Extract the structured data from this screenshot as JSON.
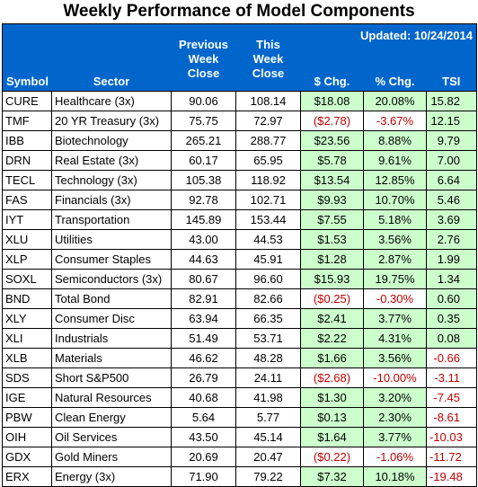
{
  "title": "Weekly Performance of Model Components",
  "updated": "Updated: 10/24/2014",
  "columns": {
    "symbol": "Symbol",
    "sector": "Sector",
    "prev": [
      "Previous",
      "Week",
      "Close"
    ],
    "this": [
      "This",
      "Week",
      "Close"
    ],
    "dchg": "$ Chg.",
    "pchg": "% Chg.",
    "tsi": "TSI"
  },
  "colors": {
    "header_bg": "#0066cc",
    "positive_bg": "#ccffcc",
    "negative_text": "#c00000"
  },
  "rows": [
    {
      "symbol": "CURE",
      "sector": "Healthcare (3x)",
      "prev": "90.06",
      "cur": "108.14",
      "dchg": "$18.08",
      "pchg": "20.08%",
      "tsi": "15.82",
      "dneg": false,
      "tneg": false
    },
    {
      "symbol": "TMF",
      "sector": "20 YR Treasury (3x)",
      "prev": "75.75",
      "cur": "72.97",
      "dchg": "($2.78)",
      "pchg": "-3.67%",
      "tsi": "12.15",
      "dneg": true,
      "tneg": false
    },
    {
      "symbol": "IBB",
      "sector": "Biotechnology",
      "prev": "265.21",
      "cur": "288.77",
      "dchg": "$23.56",
      "pchg": "8.88%",
      "tsi": "9.79",
      "dneg": false,
      "tneg": false
    },
    {
      "symbol": "DRN",
      "sector": "Real Estate (3x)",
      "prev": "60.17",
      "cur": "65.95",
      "dchg": "$5.78",
      "pchg": "9.61%",
      "tsi": "7.00",
      "dneg": false,
      "tneg": false
    },
    {
      "symbol": "TECL",
      "sector": "Technology (3x)",
      "prev": "105.38",
      "cur": "118.92",
      "dchg": "$13.54",
      "pchg": "12.85%",
      "tsi": "6.64",
      "dneg": false,
      "tneg": false
    },
    {
      "symbol": "FAS",
      "sector": "Financials (3x)",
      "prev": "92.78",
      "cur": "102.71",
      "dchg": "$9.93",
      "pchg": "10.70%",
      "tsi": "5.46",
      "dneg": false,
      "tneg": false
    },
    {
      "symbol": "IYT",
      "sector": "Transportation",
      "prev": "145.89",
      "cur": "153.44",
      "dchg": "$7.55",
      "pchg": "5.18%",
      "tsi": "3.69",
      "dneg": false,
      "tneg": false
    },
    {
      "symbol": "XLU",
      "sector": "Utilities",
      "prev": "43.00",
      "cur": "44.53",
      "dchg": "$1.53",
      "pchg": "3.56%",
      "tsi": "2.76",
      "dneg": false,
      "tneg": false
    },
    {
      "symbol": "XLP",
      "sector": "Consumer Staples",
      "prev": "44.63",
      "cur": "45.91",
      "dchg": "$1.28",
      "pchg": "2.87%",
      "tsi": "1.99",
      "dneg": false,
      "tneg": false
    },
    {
      "symbol": "SOXL",
      "sector": "Semiconductors (3x)",
      "prev": "80.67",
      "cur": "96.60",
      "dchg": "$15.93",
      "pchg": "19.75%",
      "tsi": "1.34",
      "dneg": false,
      "tneg": false
    },
    {
      "symbol": "BND",
      "sector": "Total Bond",
      "prev": "82.91",
      "cur": "82.66",
      "dchg": "($0.25)",
      "pchg": "-0.30%",
      "tsi": "0.60",
      "dneg": true,
      "tneg": false
    },
    {
      "symbol": "XLY",
      "sector": "Consumer Disc",
      "prev": "63.94",
      "cur": "66.35",
      "dchg": "$2.41",
      "pchg": "3.77%",
      "tsi": "0.35",
      "dneg": false,
      "tneg": false
    },
    {
      "symbol": "XLI",
      "sector": "Industrials",
      "prev": "51.49",
      "cur": "53.71",
      "dchg": "$2.22",
      "pchg": "4.31%",
      "tsi": "0.08",
      "dneg": false,
      "tneg": false
    },
    {
      "symbol": "XLB",
      "sector": "Materials",
      "prev": "46.62",
      "cur": "48.28",
      "dchg": "$1.66",
      "pchg": "3.56%",
      "tsi": "-0.66",
      "dneg": false,
      "tneg": true
    },
    {
      "symbol": "SDS",
      "sector": "Short S&P500",
      "prev": "26.79",
      "cur": "24.11",
      "dchg": "($2.68)",
      "pchg": "-10.00%",
      "tsi": "-3.11",
      "dneg": true,
      "tneg": true
    },
    {
      "symbol": "IGE",
      "sector": "Natural Resources",
      "prev": "40.68",
      "cur": "41.98",
      "dchg": "$1.30",
      "pchg": "3.20%",
      "tsi": "-7.45",
      "dneg": false,
      "tneg": true
    },
    {
      "symbol": "PBW",
      "sector": "Clean Energy",
      "prev": "5.64",
      "cur": "5.77",
      "dchg": "$0.13",
      "pchg": "2.30%",
      "tsi": "-8.61",
      "dneg": false,
      "tneg": true
    },
    {
      "symbol": "OIH",
      "sector": "Oil Services",
      "prev": "43.50",
      "cur": "45.14",
      "dchg": "$1.64",
      "pchg": "3.77%",
      "tsi": "-10.03",
      "dneg": false,
      "tneg": true
    },
    {
      "symbol": "GDX",
      "sector": "Gold Miners",
      "prev": "20.69",
      "cur": "20.47",
      "dchg": "($0.22)",
      "pchg": "-1.06%",
      "tsi": "-11.72",
      "dneg": true,
      "tneg": true
    },
    {
      "symbol": "ERX",
      "sector": "Energy (3x)",
      "prev": "71.90",
      "cur": "79.22",
      "dchg": "$7.32",
      "pchg": "10.18%",
      "tsi": "-19.48",
      "dneg": false,
      "tneg": true
    }
  ]
}
